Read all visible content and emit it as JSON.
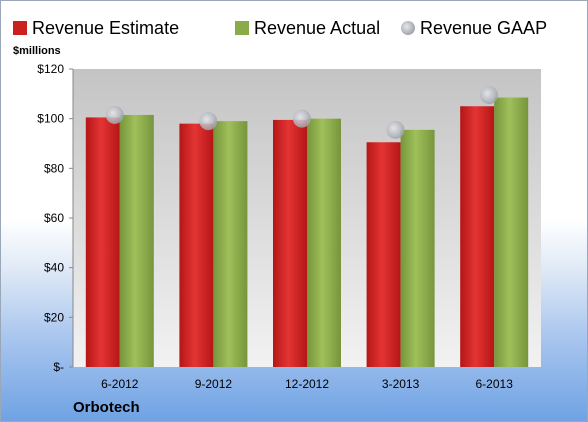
{
  "chart_data": {
    "type": "bar",
    "title": "",
    "ylabel": "$millions",
    "ylim": [
      0,
      120
    ],
    "yticks": [
      {
        "value": 0,
        "label": "$-"
      },
      {
        "value": 20,
        "label": "$20"
      },
      {
        "value": 40,
        "label": "$40"
      },
      {
        "value": 60,
        "label": "$60"
      },
      {
        "value": 80,
        "label": "$80"
      },
      {
        "value": 100,
        "label": "$100"
      },
      {
        "value": 120,
        "label": "$120"
      }
    ],
    "categories": [
      "6-2012",
      "9-2012",
      "12-2012",
      "3-2013",
      "6-2013"
    ],
    "series": [
      {
        "name": "Revenue Estimate",
        "kind": "bar",
        "color": "#cc1f1f",
        "values": [
          100.5,
          98,
          99.5,
          90.5,
          105
        ]
      },
      {
        "name": "Revenue Actual",
        "kind": "bar",
        "color": "#8bab4a",
        "values": [
          101.5,
          99,
          100,
          95.5,
          108.5
        ]
      },
      {
        "name": "Revenue GAAP",
        "kind": "marker",
        "color": "#b4b8be",
        "values": [
          101.5,
          99,
          100,
          95.5,
          109.5
        ]
      }
    ],
    "legend": "top",
    "grid": false
  },
  "company": "Orbotech"
}
